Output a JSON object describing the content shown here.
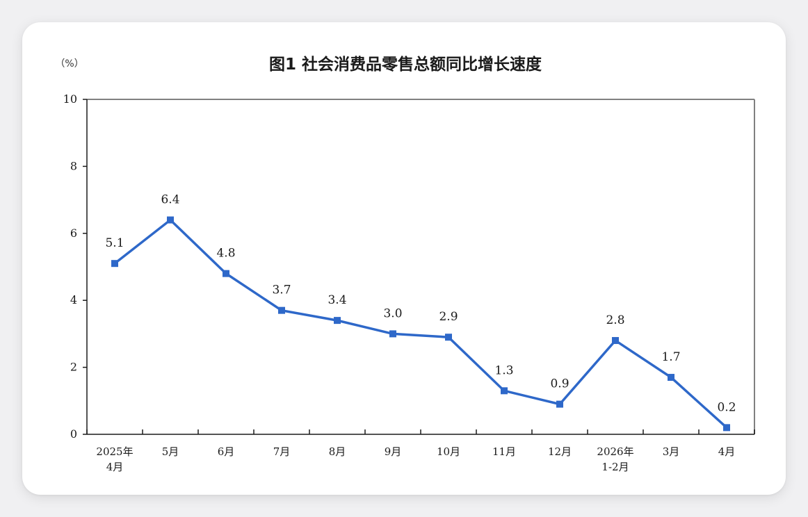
{
  "chart_data": {
    "type": "line",
    "title": "图1  社会消费品零售总额同比增长速度",
    "ylabel": "（%）",
    "xlabel": "",
    "ylim": [
      0,
      10
    ],
    "yticks": [
      0,
      2,
      4,
      6,
      8,
      10
    ],
    "categories": [
      [
        "2025年",
        "4月"
      ],
      [
        "5月"
      ],
      [
        "6月"
      ],
      [
        "7月"
      ],
      [
        "8月"
      ],
      [
        "9月"
      ],
      [
        "10月"
      ],
      [
        "11月"
      ],
      [
        "12月"
      ],
      [
        "2026年",
        "1-2月"
      ],
      [
        "3月"
      ],
      [
        "4月"
      ]
    ],
    "series": [
      {
        "values": [
          5.1,
          6.4,
          4.8,
          3.7,
          3.4,
          3.0,
          2.9,
          1.3,
          0.9,
          2.8,
          1.7,
          0.2
        ],
        "labels": [
          "5.1",
          "6.4",
          "4.8",
          "3.7",
          "3.4",
          "3.0",
          "2.9",
          "1.3",
          "0.9",
          "2.8",
          "1.7",
          "0.2"
        ],
        "color": "#2e68c9"
      }
    ],
    "grid": false,
    "legend": "none",
    "colors": {
      "axis": "#1a1a1a",
      "frame": "#808080"
    }
  }
}
